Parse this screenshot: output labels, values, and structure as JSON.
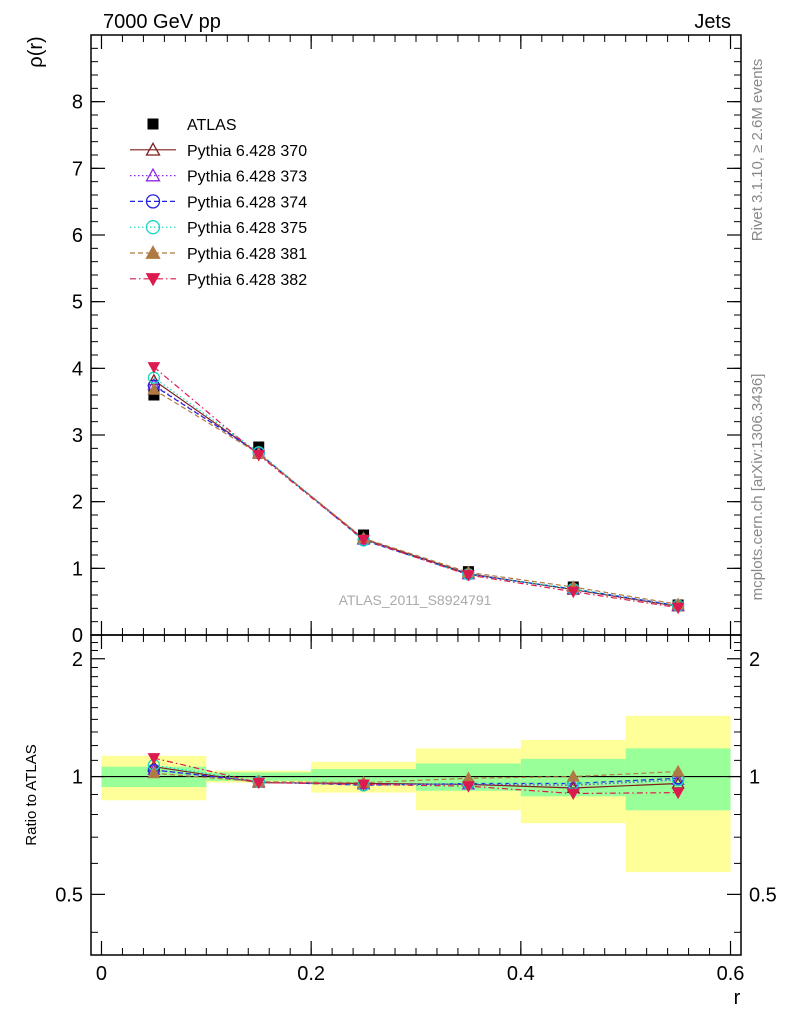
{
  "header": {
    "left": "7000 GeV pp",
    "right": "Jets"
  },
  "side": {
    "rivet": "Rivet 3.1.10, ≥ 2.6M events",
    "mcplots": "mcplots.cern.ch [arXiv:1306.3436]"
  },
  "watermark": "ATLAS_2011_S8924791",
  "chart_data": [
    {
      "type": "scatter",
      "panel": "main",
      "ylabel": "ρ(r)",
      "xlim": [
        -0.01,
        0.61
      ],
      "ylim": [
        0,
        9
      ],
      "yticks": [
        0,
        1,
        2,
        3,
        4,
        5,
        6,
        7,
        8
      ],
      "grid": false,
      "legend_position": "top-left",
      "x": [
        0.05,
        0.15,
        0.25,
        0.35,
        0.45,
        0.55
      ],
      "series": [
        {
          "name": "ATLAS",
          "color": "#000000",
          "marker": "square",
          "line": "none",
          "values": [
            3.6,
            2.82,
            1.5,
            0.95,
            0.72,
            0.45
          ]
        },
        {
          "name": "Pythia 6.428 370",
          "color": "#7f1f1f",
          "marker": "triangle-open",
          "line": "solid",
          "values": [
            3.82,
            2.72,
            1.44,
            0.92,
            0.68,
            0.43
          ]
        },
        {
          "name": "Pythia 6.428 373",
          "color": "#8b2be2",
          "marker": "triangle-open",
          "line": "dotted",
          "values": [
            3.75,
            2.73,
            1.43,
            0.91,
            0.69,
            0.44
          ]
        },
        {
          "name": "Pythia 6.428 374",
          "color": "#2222dd",
          "marker": "circle-open",
          "line": "dashed",
          "values": [
            3.74,
            2.73,
            1.42,
            0.91,
            0.69,
            0.44
          ]
        },
        {
          "name": "Pythia 6.428 375",
          "color": "#18d8c0",
          "marker": "circle-open",
          "line": "dotted",
          "values": [
            3.86,
            2.74,
            1.42,
            0.91,
            0.69,
            0.44
          ]
        },
        {
          "name": "Pythia 6.428 381",
          "color": "#b07a45",
          "marker": "triangle-filled",
          "line": "dashed",
          "values": [
            3.68,
            2.72,
            1.45,
            0.94,
            0.72,
            0.46
          ]
        },
        {
          "name": "Pythia 6.428 382",
          "color": "#dd1a4f",
          "marker": "triangle-down-filled",
          "line": "dashdot",
          "values": [
            4.02,
            2.7,
            1.43,
            0.9,
            0.65,
            0.41
          ]
        }
      ]
    },
    {
      "type": "scatter",
      "panel": "ratio",
      "xlabel": "r",
      "ylabel": "Ratio to ATLAS",
      "xlim": [
        -0.01,
        0.61
      ],
      "ylim": [
        0.35,
        2.3
      ],
      "yticks": [
        0.5,
        1,
        2
      ],
      "xticks": [
        0,
        0.2,
        0.4,
        0.6
      ],
      "reference": 1,
      "bands": [
        {
          "x0": 0.0,
          "x1": 0.1,
          "inner": [
            0.94,
            1.06
          ],
          "outer": [
            0.87,
            1.13
          ]
        },
        {
          "x0": 0.1,
          "x1": 0.2,
          "inner": [
            0.975,
            1.025
          ],
          "outer": [
            0.965,
            1.035
          ]
        },
        {
          "x0": 0.2,
          "x1": 0.3,
          "inner": [
            0.955,
            1.045
          ],
          "outer": [
            0.91,
            1.09
          ]
        },
        {
          "x0": 0.3,
          "x1": 0.4,
          "inner": [
            0.92,
            1.08
          ],
          "outer": [
            0.82,
            1.18
          ]
        },
        {
          "x0": 0.4,
          "x1": 0.5,
          "inner": [
            0.89,
            1.11
          ],
          "outer": [
            0.76,
            1.24
          ]
        },
        {
          "x0": 0.5,
          "x1": 0.6,
          "inner": [
            0.82,
            1.18
          ],
          "outer": [
            0.57,
            1.43
          ]
        }
      ],
      "x": [
        0.05,
        0.15,
        0.25,
        0.35,
        0.45,
        0.55
      ],
      "series": [
        {
          "name": "Pythia 6.428 370",
          "values": [
            1.06,
            0.965,
            0.96,
            0.955,
            0.935,
            0.96
          ]
        },
        {
          "name": "Pythia 6.428 373",
          "values": [
            1.04,
            0.97,
            0.955,
            0.955,
            0.95,
            0.98
          ]
        },
        {
          "name": "Pythia 6.428 374",
          "values": [
            1.04,
            0.97,
            0.95,
            0.96,
            0.96,
            0.99
          ]
        },
        {
          "name": "Pythia 6.428 375",
          "values": [
            1.07,
            0.97,
            0.95,
            0.96,
            0.96,
            0.98
          ]
        },
        {
          "name": "Pythia 6.428 381",
          "values": [
            1.02,
            0.97,
            0.965,
            0.99,
            1.0,
            1.03
          ]
        },
        {
          "name": "Pythia 6.428 382",
          "values": [
            1.115,
            0.965,
            0.955,
            0.945,
            0.905,
            0.91
          ]
        }
      ]
    }
  ],
  "colors": {
    "band_inner": "#99ff99",
    "band_outer": "#ffff99"
  }
}
